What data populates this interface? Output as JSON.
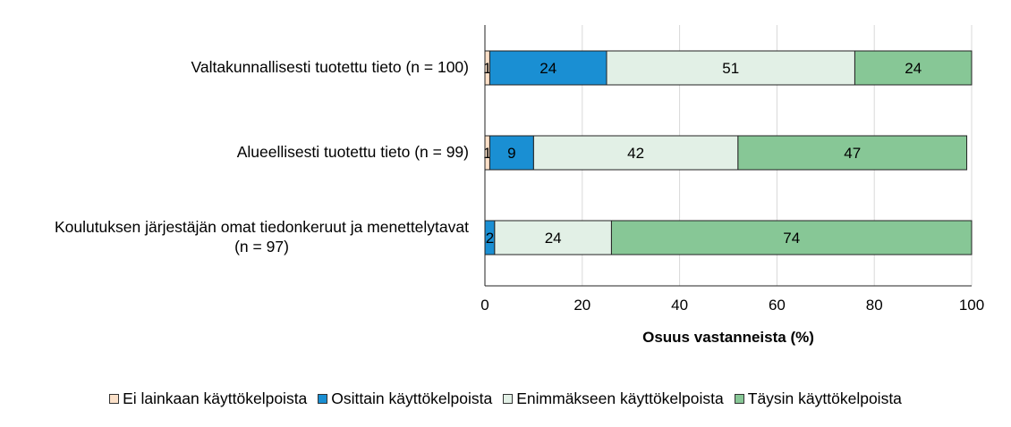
{
  "chart_data": {
    "type": "bar",
    "orientation": "horizontal",
    "stacked": true,
    "categories": [
      "Valtakunnallisesti tuotettu tieto (n = 100)",
      "Alueellisesti tuotettu tieto (n = 99)",
      "Koulutuksen järjestäjän omat tiedonkeruut ja menettelytavat (n = 97)"
    ],
    "category_lines": [
      [
        "Valtakunnallisesti tuotettu tieto (n = 100)"
      ],
      [
        "Alueellisesti tuotettu tieto (n = 99)"
      ],
      [
        "Koulutuksen järjestäjän omat tiedonkeruut ja menettelytavat",
        "(n = 97)"
      ]
    ],
    "series": [
      {
        "name": "Ei lainkaan käyttökelpoista",
        "color": "#fbe0c8",
        "values": [
          1,
          1,
          0
        ]
      },
      {
        "name": "Osittain käyttökelpoista",
        "color": "#1a8fd3",
        "values": [
          24,
          9,
          2
        ]
      },
      {
        "name": "Enimmäkseen käyttökelpoista",
        "color": "#e2f0e6",
        "values": [
          51,
          42,
          24
        ]
      },
      {
        "name": "Täysin käyttökelpoista",
        "color": "#87c796",
        "values": [
          24,
          47,
          74
        ]
      }
    ],
    "xlabel": "Osuus vastanneista (%)",
    "xlim": [
      0,
      100
    ],
    "xticks": [
      "0",
      "20",
      "40",
      "60",
      "80",
      "100"
    ],
    "grid": "vertical",
    "legend_position": "bottom"
  }
}
